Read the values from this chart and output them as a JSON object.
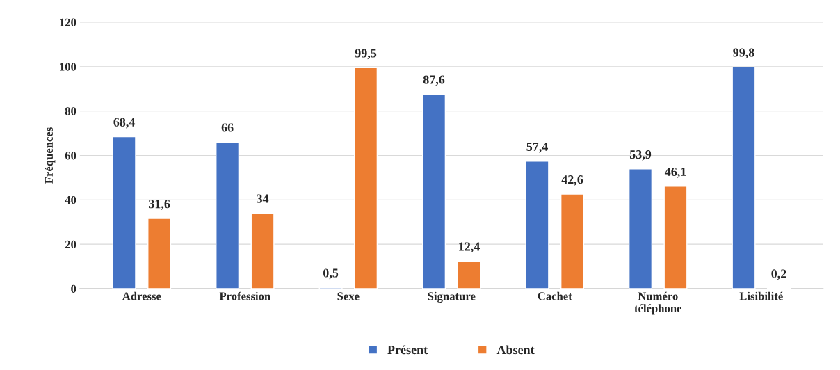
{
  "chart_data": {
    "type": "bar",
    "ylabel": "Fréquences",
    "categories": [
      "Adresse",
      "Profession",
      "Sexe",
      "Signature",
      "Cachet",
      "Numéro\ntéléphone",
      "Lisibilité"
    ],
    "series": [
      {
        "name": "Présent",
        "color": "#4472c4",
        "values": [
          68.4,
          66,
          0.5,
          87.6,
          57.4,
          53.9,
          99.8
        ],
        "value_labels": [
          "68,4",
          "66",
          "0,5",
          "87,6",
          "57,4",
          "53,9",
          "99,8"
        ]
      },
      {
        "name": "Absent",
        "color": "#ed7d31",
        "values": [
          31.6,
          34,
          99.5,
          12.4,
          42.6,
          46.1,
          0.2
        ],
        "value_labels": [
          "31,6",
          "34",
          "99,5",
          "12,4",
          "42,6",
          "46,1",
          "0,2"
        ]
      }
    ],
    "ylim": [
      0,
      120
    ],
    "yticks": [
      0,
      20,
      40,
      60,
      80,
      100,
      120
    ],
    "grid": "y",
    "legend": "bottom"
  }
}
